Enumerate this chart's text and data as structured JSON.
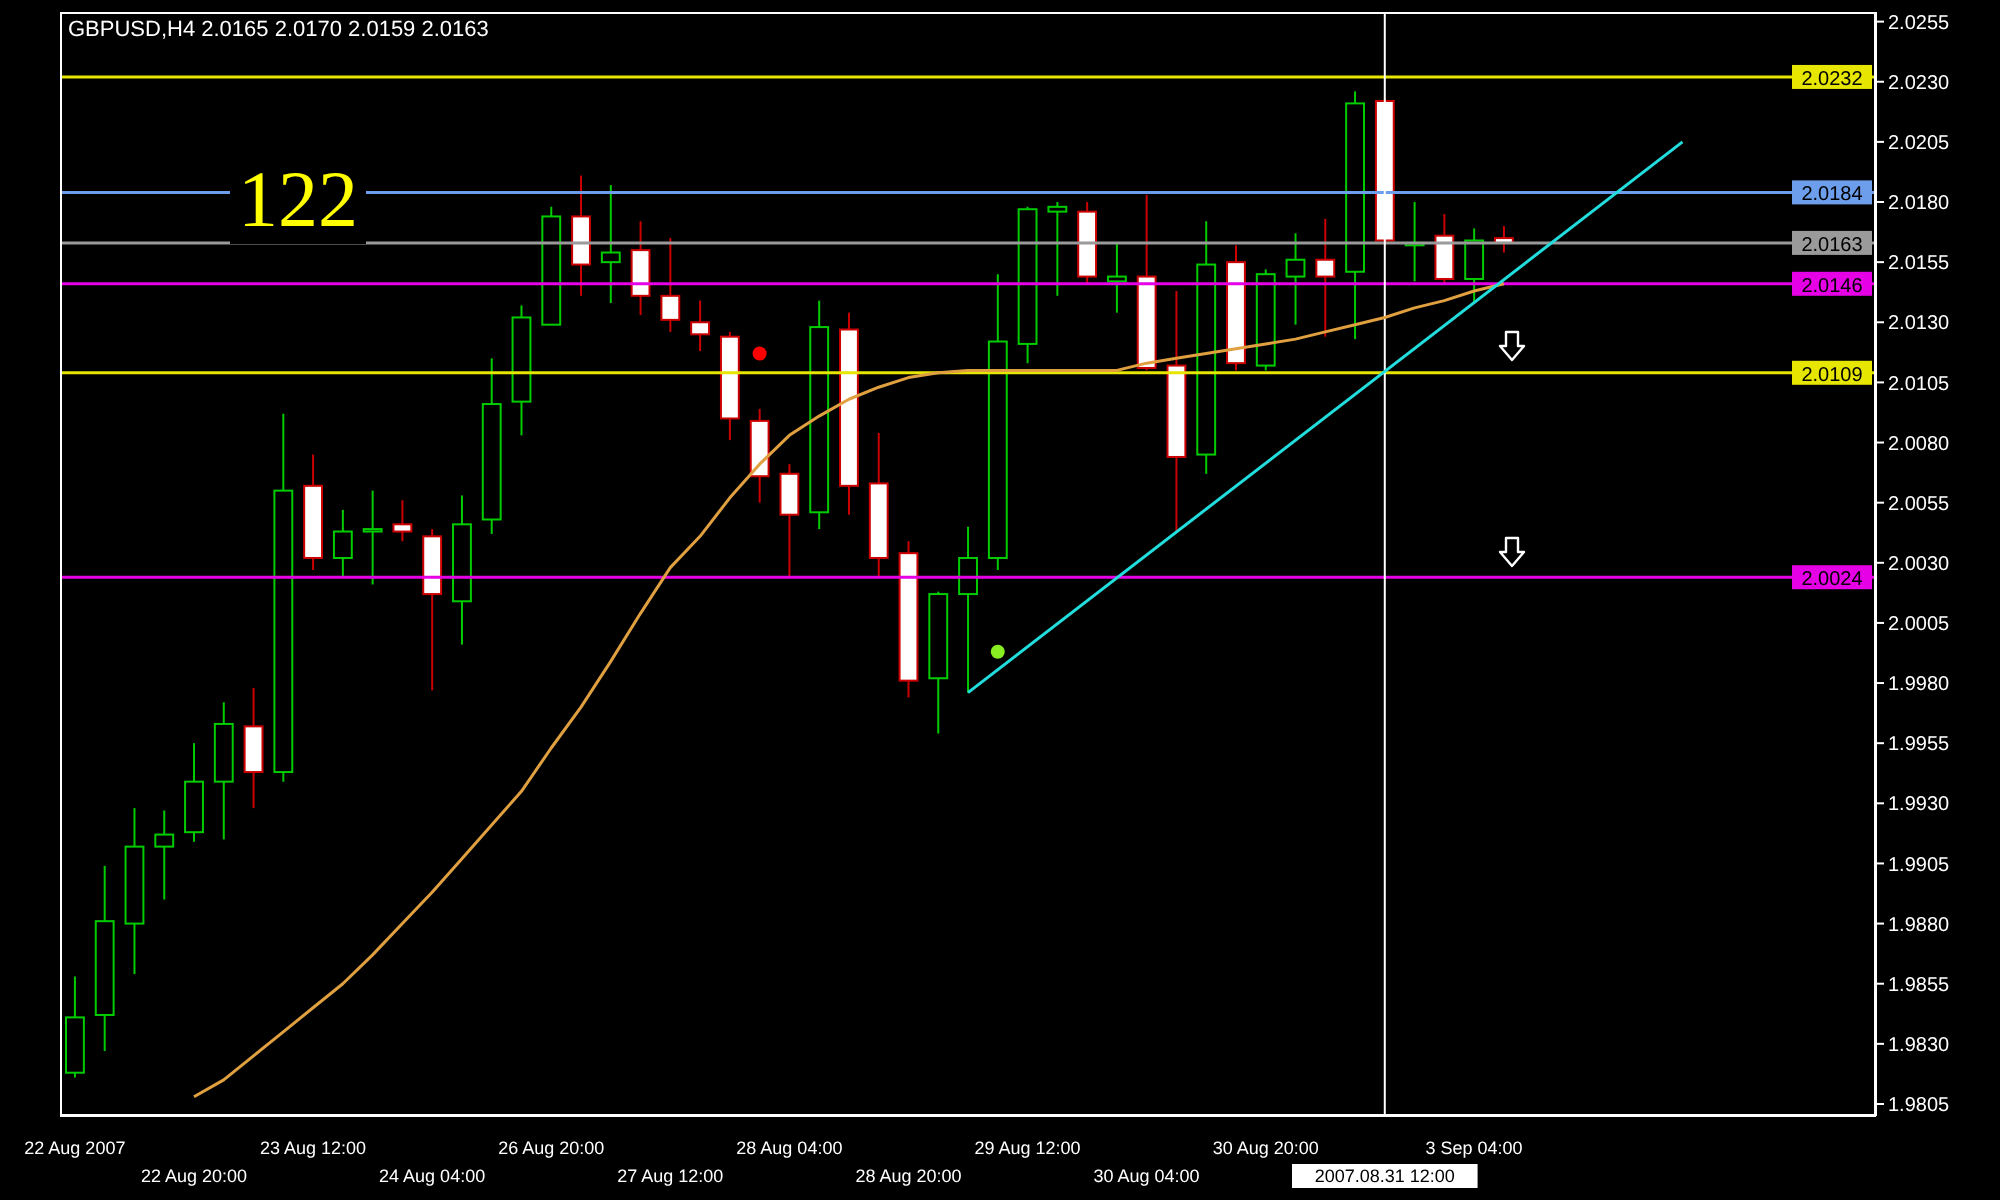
{
  "chart_data": {
    "type": "candlestick",
    "title": "GBPUSD,H4 2.0165 2.0170 2.0159 2.0163",
    "annotations": [
      "122"
    ],
    "categories": [
      "22 Aug 2007",
      null,
      null,
      null,
      "22 Aug 20:00",
      null,
      null,
      null,
      "23 Aug 12:00",
      null,
      null,
      null,
      "24 Aug 04:00",
      null,
      null,
      null,
      "26 Aug 20:00",
      null,
      null,
      null,
      "27 Aug 12:00",
      null,
      null,
      null,
      "28 Aug 04:00",
      null,
      null,
      null,
      "28 Aug 20:00",
      null,
      null,
      null,
      "29 Aug 12:00",
      null,
      null,
      null,
      "30 Aug 04:00",
      null,
      null,
      null,
      "30 Aug 20:00",
      null,
      null,
      null,
      "2007.08.31 12:00",
      null,
      null,
      "3 Sep 04:00",
      null,
      null,
      null,
      null,
      null,
      null,
      null,
      null,
      null,
      null,
      null,
      null,
      null
    ],
    "ohlc": [
      [
        1.9818,
        1.9858,
        1.9816,
        1.9841
      ],
      [
        1.9842,
        1.9904,
        1.9827,
        1.9881
      ],
      [
        1.988,
        1.9928,
        1.9859,
        1.9912
      ],
      [
        1.9912,
        1.9927,
        1.989,
        1.9917
      ],
      [
        1.9918,
        1.9955,
        1.9914,
        1.9939
      ],
      [
        1.9939,
        1.9972,
        1.9915,
        1.9963
      ],
      [
        1.9962,
        1.9978,
        1.9928,
        1.9943
      ],
      [
        1.9943,
        2.0092,
        1.9939,
        2.006
      ],
      [
        2.0062,
        2.0075,
        2.0027,
        2.0032
      ],
      [
        2.0032,
        2.0052,
        2.0024,
        2.0043
      ],
      [
        2.0043,
        2.006,
        2.0021,
        2.0044
      ],
      [
        2.0046,
        2.0056,
        2.0039,
        2.0043
      ],
      [
        2.0041,
        2.0044,
        1.9977,
        2.0017
      ],
      [
        2.0014,
        2.0058,
        1.9996,
        2.0046
      ],
      [
        2.0048,
        2.0115,
        2.0042,
        2.0096
      ],
      [
        2.0097,
        2.0137,
        2.0083,
        2.0132
      ],
      [
        2.0129,
        2.0178,
        2.0129,
        2.0174
      ],
      [
        2.0174,
        2.0191,
        2.0141,
        2.0154
      ],
      [
        2.0155,
        2.0187,
        2.0138,
        2.0159
      ],
      [
        2.016,
        2.0172,
        2.0133,
        2.0141
      ],
      [
        2.0141,
        2.0165,
        2.0126,
        2.0131
      ],
      [
        2.013,
        2.0139,
        2.0118,
        2.0125
      ],
      [
        2.0124,
        2.0126,
        2.0081,
        2.009
      ],
      [
        2.0089,
        2.0094,
        2.0055,
        2.0066
      ],
      [
        2.0067,
        2.0071,
        2.0024,
        2.005
      ],
      [
        2.0051,
        2.0139,
        2.0044,
        2.0128
      ],
      [
        2.0127,
        2.0134,
        2.005,
        2.0062
      ],
      [
        2.0063,
        2.0084,
        2.0024,
        2.0032
      ],
      [
        2.0034,
        2.0039,
        1.9974,
        1.9981
      ],
      [
        1.9982,
        2.0018,
        1.9959,
        2.0017
      ],
      [
        2.0017,
        2.0045,
        1.9976,
        2.0032
      ],
      [
        2.0032,
        2.015,
        2.0027,
        2.0122
      ],
      [
        2.0121,
        2.0178,
        2.0113,
        2.0177
      ],
      [
        2.0176,
        2.018,
        2.0141,
        2.0178
      ],
      [
        2.0176,
        2.018,
        2.0146,
        2.0149
      ],
      [
        2.0147,
        2.0163,
        2.0134,
        2.0149
      ],
      [
        2.0149,
        2.0183,
        2.011,
        2.0111
      ],
      [
        2.0112,
        2.0143,
        2.0043,
        2.0074
      ],
      [
        2.0075,
        2.0172,
        2.0067,
        2.0154
      ],
      [
        2.0155,
        2.0162,
        2.011,
        2.0113
      ],
      [
        2.0112,
        2.0152,
        2.011,
        2.015
      ],
      [
        2.0149,
        2.0167,
        2.0129,
        2.0156
      ],
      [
        2.0156,
        2.0173,
        2.0124,
        2.0149
      ],
      [
        2.0151,
        2.0226,
        2.0123,
        2.0221
      ],
      [
        2.0222,
        2.0223,
        2.0162,
        2.0164
      ],
      [
        2.0162,
        2.018,
        2.0147,
        2.0163
      ],
      [
        2.0166,
        2.0175,
        2.0146,
        2.0148
      ],
      [
        2.0148,
        2.0169,
        2.0138,
        2.0164
      ],
      [
        2.0165,
        2.017,
        2.0159,
        2.0163
      ],
      null,
      null,
      null,
      null,
      null,
      null,
      null,
      null,
      null,
      null,
      null,
      null
    ],
    "colors": [
      "#00cc00",
      "#00cc00",
      "#00cc00",
      "#00cc00",
      "#00cc00",
      "#00cc00",
      "#cc0000",
      "#00cc00",
      "#cc0000",
      "#00cc00",
      "#00cc00",
      "#cc0000",
      "#cc0000",
      "#00cc00",
      "#00cc00",
      "#00cc00",
      "#00cc00",
      "#cc0000",
      "#00cc00",
      "#cc0000",
      "#cc0000",
      "#cc0000",
      "#cc0000",
      "#cc0000",
      "#cc0000",
      "#00cc00",
      "#cc0000",
      "#cc0000",
      "#cc0000",
      "#00cc00",
      "#00cc00",
      "#00cc00",
      "#00cc00",
      "#00cc00",
      "#cc0000",
      "#00cc00",
      "#cc0000",
      "#cc0000",
      "#00cc00",
      "#cc0000",
      "#00cc00",
      "#00cc00",
      "#cc0000",
      "#00cc00",
      "#cc0000",
      "#00cc00",
      "#cc0000",
      "#00cc00",
      "#cc0000",
      null,
      null,
      null,
      null,
      null,
      null,
      null,
      null,
      null,
      null,
      null,
      null
    ],
    "series": [
      {
        "type": "line",
        "color": "#e0a040",
        "values": [
          null,
          null,
          null,
          null,
          1.9808,
          1.9815,
          1.9825,
          1.9835,
          1.9845,
          1.9855,
          1.9867,
          1.988,
          1.9893,
          1.9907,
          1.9921,
          1.9935,
          1.9953,
          1.997,
          1.9989,
          2.0009,
          2.0028,
          2.0041,
          2.0057,
          2.0071,
          2.0083,
          2.0091,
          2.0098,
          2.0103,
          2.0107,
          2.0109,
          2.011,
          2.011,
          2.011,
          2.011,
          2.011,
          2.011,
          2.0113,
          2.0115,
          2.0117,
          2.0119,
          2.0121,
          2.0123,
          2.0126,
          2.0129,
          2.0132,
          2.0136,
          2.0139,
          2.0143,
          2.0146,
          null,
          null,
          null,
          null,
          null,
          null,
          null,
          null,
          null,
          null,
          null,
          null
        ]
      },
      {
        "type": "line",
        "color": "#22dddd",
        "values": [
          null,
          null,
          null,
          null,
          null,
          null,
          null,
          null,
          null,
          null,
          null,
          null,
          null,
          null,
          null,
          null,
          null,
          null,
          null,
          null,
          null,
          null,
          null,
          null,
          null,
          null,
          null,
          null,
          null,
          null,
          1.9976,
          null,
          null,
          null,
          null,
          null,
          null,
          null,
          null,
          null,
          null,
          null,
          null,
          null,
          null,
          null,
          null,
          null,
          null,
          null,
          null,
          null,
          null,
          null,
          2.0205,
          null,
          null,
          null,
          null,
          null,
          null
        ]
      },
      {
        "type": "scatter",
        "color": "#ff0000",
        "marker": "circle",
        "values": [
          null,
          null,
          null,
          null,
          null,
          null,
          null,
          null,
          null,
          null,
          null,
          null,
          null,
          null,
          null,
          null,
          null,
          null,
          null,
          null,
          null,
          null,
          null,
          2.0117,
          null,
          null,
          null,
          null,
          null,
          null,
          null,
          null,
          null,
          null,
          null,
          null,
          null,
          null,
          null,
          null,
          null,
          null,
          null,
          null,
          null,
          null,
          null,
          null,
          null,
          null,
          null,
          null,
          null,
          null,
          null,
          null,
          null,
          null,
          null,
          null,
          null
        ]
      },
      {
        "type": "scatter",
        "color": "#88ee22",
        "marker": "circle",
        "values": [
          null,
          null,
          null,
          null,
          null,
          null,
          null,
          null,
          null,
          null,
          null,
          null,
          null,
          null,
          null,
          null,
          null,
          null,
          null,
          null,
          null,
          null,
          null,
          null,
          null,
          null,
          null,
          null,
          null,
          null,
          null,
          1.9993,
          null,
          null,
          null,
          null,
          null,
          null,
          null,
          null,
          null,
          null,
          null,
          null,
          null,
          null,
          null,
          null,
          null,
          null,
          null,
          null,
          null,
          null,
          null,
          null,
          null,
          null,
          null,
          null,
          null
        ]
      }
    ],
    "ylim": [
      1.98,
      2.0259
    ],
    "yticks": [
      1.9805,
      {
        "value": 1.983,
        "label": "1.9830"
      },
      1.9855,
      {
        "value": 1.988,
        "label": "1.9880"
      },
      1.9905,
      {
        "value": 1.993,
        "label": "1.9930"
      },
      1.9955,
      {
        "value": 1.998,
        "label": "1.9980"
      },
      2.0005,
      {
        "value": 2.003,
        "label": "2.0030"
      },
      2.0055,
      {
        "value": 2.008,
        "label": "2.0080"
      },
      2.0105,
      {
        "value": 2.013,
        "label": "2.0130"
      },
      2.0155,
      {
        "value": 2.018,
        "label": "2.0180"
      },
      2.0205,
      {
        "value": 2.023,
        "label": "2.0230"
      },
      2.0255
    ],
    "ref_lines": [
      {
        "axis": "y",
        "value": 2.0232,
        "label": "2.0232",
        "color": "#e6e600"
      },
      {
        "axis": "y",
        "value": 2.0184,
        "label": "2.0184",
        "color": "#6d9eeb"
      },
      {
        "axis": "y",
        "value": 2.0163,
        "label": "2.0163",
        "color": "#9a9a9a"
      },
      {
        "axis": "y",
        "value": 2.0146,
        "label": "2.0146",
        "color": "#e600e6"
      },
      {
        "axis": "y",
        "value": 2.0109,
        "label": "2.0109",
        "color": "#e6e600"
      },
      {
        "axis": "y",
        "value": 2.0024,
        "label": "2.0024",
        "color": "#e600e6"
      },
      {
        "axis": "x",
        "value": "2007.08.31 12:00",
        "color": "#ffffff"
      }
    ]
  }
}
